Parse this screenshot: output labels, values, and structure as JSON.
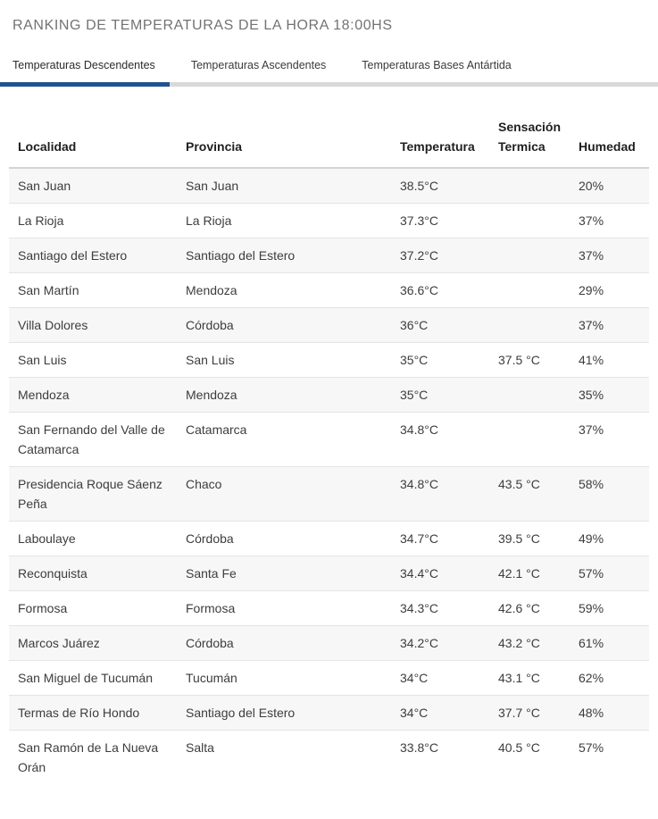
{
  "page": {
    "title": "RANKING DE TEMPERATURAS DE LA HORA 18:00HS"
  },
  "tabs": [
    {
      "label": "Temperaturas Descendentes",
      "active": true
    },
    {
      "label": "Temperaturas Ascendentes",
      "active": false
    },
    {
      "label": "Temperaturas Bases Antártida",
      "active": false
    }
  ],
  "colors": {
    "accent": "#1f5391",
    "tab_track": "#d9d9d9",
    "row_alt_background": "#f7f7f7",
    "row_border": "#e4e4e4",
    "title_text": "#737373",
    "body_text": "#3d3d3d"
  },
  "table": {
    "columns": [
      "Localidad",
      "Provincia",
      "Temperatura",
      "Sensación Termica",
      "Humedad"
    ],
    "rows": [
      {
        "localidad": "San Juan",
        "provincia": "San Juan",
        "temperatura": "38.5°C",
        "sensacion": "",
        "humedad": "20%"
      },
      {
        "localidad": "La Rioja",
        "provincia": "La Rioja",
        "temperatura": "37.3°C",
        "sensacion": "",
        "humedad": "37%"
      },
      {
        "localidad": "Santiago del Estero",
        "provincia": "Santiago del Estero",
        "temperatura": "37.2°C",
        "sensacion": "",
        "humedad": "37%"
      },
      {
        "localidad": "San Martín",
        "provincia": "Mendoza",
        "temperatura": "36.6°C",
        "sensacion": "",
        "humedad": "29%"
      },
      {
        "localidad": "Villa Dolores",
        "provincia": "Córdoba",
        "temperatura": "36°C",
        "sensacion": "",
        "humedad": "37%"
      },
      {
        "localidad": "San Luis",
        "provincia": "San Luis",
        "temperatura": "35°C",
        "sensacion": "37.5 °C",
        "humedad": "41%"
      },
      {
        "localidad": "Mendoza",
        "provincia": "Mendoza",
        "temperatura": "35°C",
        "sensacion": "",
        "humedad": "35%"
      },
      {
        "localidad": "San Fernando del Valle de Catamarca",
        "provincia": "Catamarca",
        "temperatura": "34.8°C",
        "sensacion": "",
        "humedad": "37%"
      },
      {
        "localidad": "Presidencia Roque Sáenz Peña",
        "provincia": "Chaco",
        "temperatura": "34.8°C",
        "sensacion": "43.5 °C",
        "humedad": "58%"
      },
      {
        "localidad": "Laboulaye",
        "provincia": "Córdoba",
        "temperatura": "34.7°C",
        "sensacion": "39.5 °C",
        "humedad": "49%"
      },
      {
        "localidad": "Reconquista",
        "provincia": "Santa Fe",
        "temperatura": "34.4°C",
        "sensacion": "42.1 °C",
        "humedad": "57%"
      },
      {
        "localidad": "Formosa",
        "provincia": "Formosa",
        "temperatura": "34.3°C",
        "sensacion": "42.6 °C",
        "humedad": "59%"
      },
      {
        "localidad": "Marcos Juárez",
        "provincia": "Córdoba",
        "temperatura": "34.2°C",
        "sensacion": "43.2 °C",
        "humedad": "61%"
      },
      {
        "localidad": "San Miguel de Tucumán",
        "provincia": "Tucumán",
        "temperatura": "34°C",
        "sensacion": "43.1 °C",
        "humedad": "62%"
      },
      {
        "localidad": "Termas de Río Hondo",
        "provincia": "Santiago del Estero",
        "temperatura": "34°C",
        "sensacion": "37.7 °C",
        "humedad": "48%"
      },
      {
        "localidad": "San Ramón de La Nueva Orán",
        "provincia": "Salta",
        "temperatura": "33.8°C",
        "sensacion": "40.5 °C",
        "humedad": "57%"
      }
    ]
  }
}
